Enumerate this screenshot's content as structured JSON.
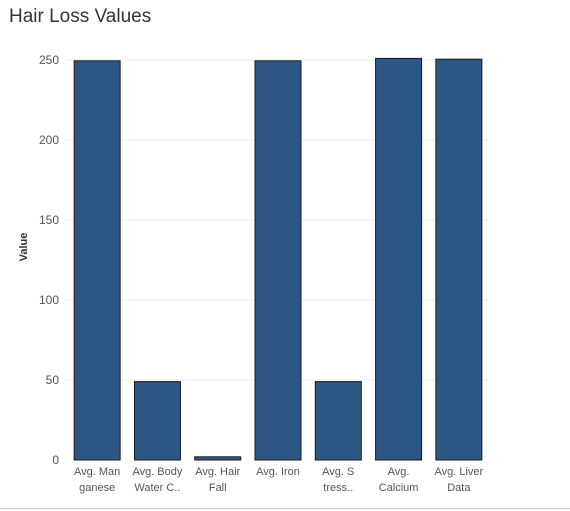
{
  "chart_data": {
    "type": "bar",
    "title": "Hair Loss Values",
    "ylabel": "Value",
    "xlabel": "",
    "ylim": [
      0,
      260
    ],
    "yticks": [
      0,
      50,
      100,
      150,
      200,
      250
    ],
    "grid": true,
    "legend": "none",
    "categories": [
      [
        "Avg. Man",
        "ganese"
      ],
      [
        "Avg. Body",
        "Water C.."
      ],
      [
        "Avg. Hair",
        "Fall"
      ],
      [
        "Avg. Iron"
      ],
      [
        "Avg. S",
        "tress.."
      ],
      [
        "Avg.",
        "Calcium"
      ],
      [
        "Avg. Liver",
        "Data"
      ]
    ],
    "values": [
      249.5,
      49,
      2,
      249.5,
      49,
      251,
      250.5
    ],
    "bar_color": "#2c5784",
    "bar_edge_color": "#1a1a1a"
  }
}
